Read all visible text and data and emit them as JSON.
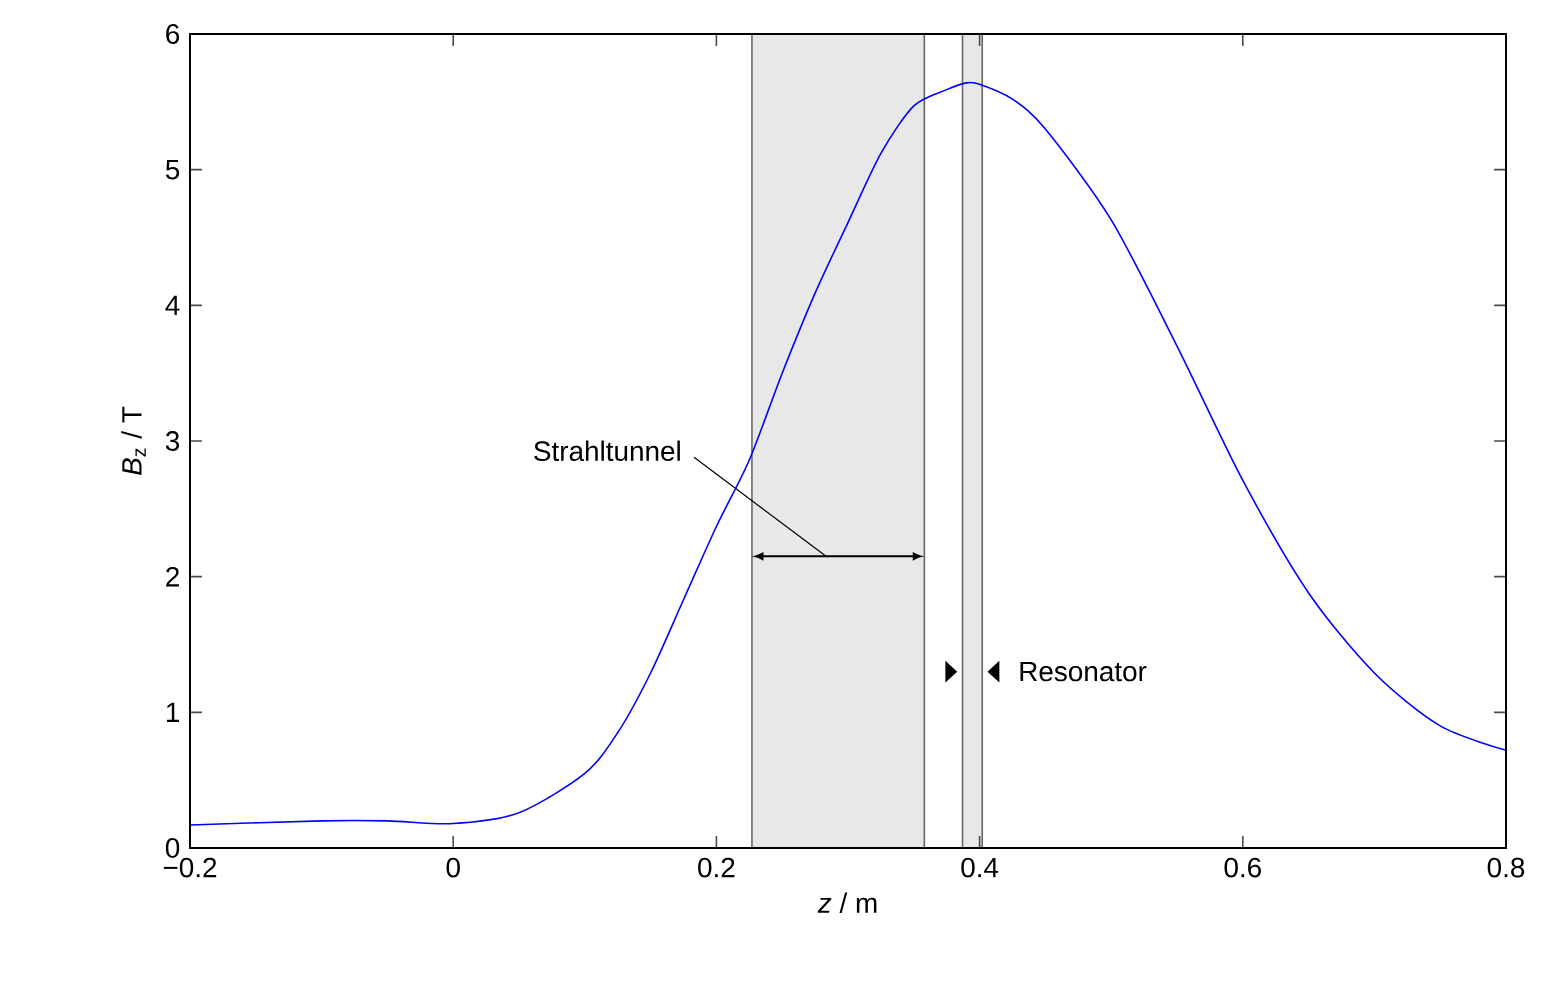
{
  "chart_data": {
    "type": "line",
    "xlabel": "*z* / m",
    "ylabel": "*B*$_{z}$ / T",
    "xlim": [
      -0.2,
      0.8
    ],
    "ylim": [
      0,
      6
    ],
    "xticks": [
      {
        "value": -0.2,
        "label": "−0.2"
      },
      0,
      0.2,
      0.4,
      0.6,
      0.8
    ],
    "yticks": [
      0,
      1,
      2,
      3,
      4,
      5,
      6
    ],
    "x": [
      -0.2,
      -0.1,
      -0.05,
      0,
      0.05,
      0.1,
      0.125,
      0.15,
      0.175,
      0.2,
      0.225,
      0.25,
      0.275,
      0.3,
      0.325,
      0.35,
      0.375,
      0.39,
      0.4,
      0.425,
      0.45,
      0.5,
      0.55,
      0.6,
      0.65,
      0.7,
      0.75,
      0.8
    ],
    "series": [
      {
        "color": "#0000ff",
        "values": [
          0.17,
          0.2,
          0.2,
          0.18,
          0.26,
          0.55,
          0.85,
          1.29,
          1.83,
          2.37,
          2.86,
          3.5,
          4.09,
          4.61,
          5.12,
          5.47,
          5.59,
          5.64,
          5.63,
          5.52,
          5.3,
          4.63,
          3.7,
          2.71,
          1.88,
          1.29,
          0.9,
          0.72
        ]
      }
    ],
    "bands": [
      {
        "axis": "x",
        "from": 0.227,
        "to": 0.358,
        "label": "Strahltunnel",
        "color": "#e8e8e8"
      },
      {
        "axis": "x",
        "from": 0.387,
        "to": 0.402,
        "label": "Resonator",
        "color": "#e8e8e8"
      }
    ]
  }
}
